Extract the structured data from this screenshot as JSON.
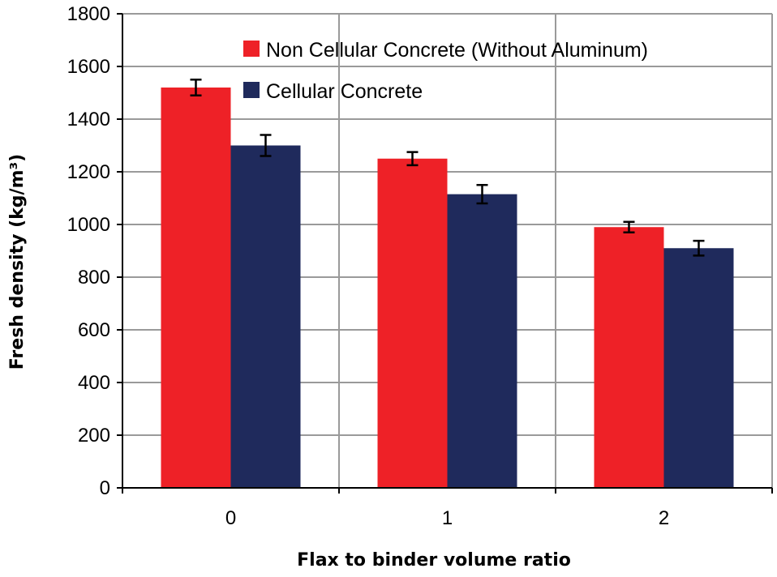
{
  "chart_data": {
    "type": "bar",
    "title": "",
    "xlabel": "Flax to binder volume ratio",
    "ylabel": "Fresh density (kg/m³)",
    "categories": [
      "0",
      "1",
      "2"
    ],
    "ylim": [
      0,
      1800
    ],
    "yticks": [
      0,
      200,
      400,
      600,
      800,
      1000,
      1200,
      1400,
      1600,
      1800
    ],
    "grid": true,
    "legend_position": "top-right",
    "series": [
      {
        "name": "Non Cellular Concrete (Without Aluminum)",
        "color": "#ee2127",
        "values": [
          1520,
          1250,
          990
        ],
        "errors": [
          30,
          25,
          20
        ]
      },
      {
        "name": "Cellular Concrete",
        "color": "#1f2a5c",
        "values": [
          1300,
          1115,
          910
        ],
        "errors": [
          40,
          35,
          28
        ]
      }
    ]
  }
}
